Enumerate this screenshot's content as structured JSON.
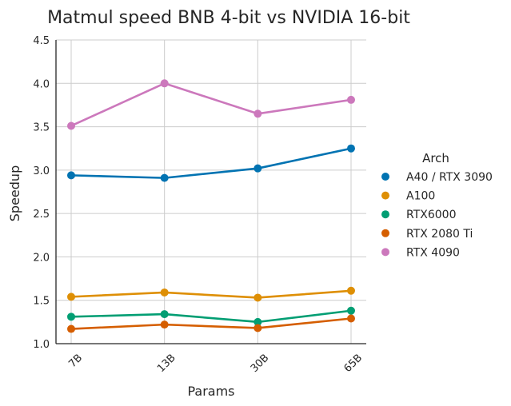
{
  "chart_data": {
    "type": "line",
    "title": "Matmul speed BNB 4-bit vs NVIDIA 16-bit",
    "xlabel": "Params",
    "ylabel": "Speedup",
    "categories": [
      "7B",
      "13B",
      "30B",
      "65B"
    ],
    "ylim": [
      1.0,
      4.5
    ],
    "yticks": [
      "1.0",
      "1.5",
      "2.0",
      "2.5",
      "3.0",
      "3.5",
      "4.0",
      "4.5"
    ],
    "grid": true,
    "legend": {
      "title": "Arch",
      "placement": "right"
    },
    "series": [
      {
        "name": "A40 / RTX 3090",
        "color": "#0173b2",
        "values": [
          2.94,
          2.91,
          3.02,
          3.25
        ]
      },
      {
        "name": "A100",
        "color": "#de8f05",
        "values": [
          1.54,
          1.59,
          1.53,
          1.61
        ]
      },
      {
        "name": "RTX6000",
        "color": "#029e73",
        "values": [
          1.31,
          1.34,
          1.25,
          1.38
        ]
      },
      {
        "name": "RTX 2080 Ti",
        "color": "#d55e00",
        "values": [
          1.17,
          1.22,
          1.18,
          1.29
        ]
      },
      {
        "name": "RTX 4090",
        "color": "#cc78bc",
        "values": [
          3.51,
          4.0,
          3.65,
          3.81
        ]
      }
    ]
  }
}
